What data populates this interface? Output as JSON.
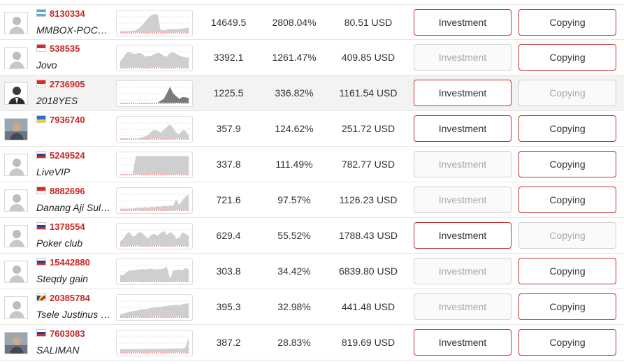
{
  "colors": {
    "account_red": "#c82828",
    "button_border_active": "#c13030",
    "button_border_disabled": "#cfcfcf",
    "sparkline_fill": "#cfcfcf",
    "sparkline_baseline": "#e05050"
  },
  "rows": [
    {
      "flag": "guatemala",
      "account": "8130334",
      "nickname": "MMBOX-POCKETS",
      "points": "14649.5",
      "gain": "2808.04%",
      "equity": "80.51 USD",
      "invest_label": "Investment",
      "copy_label": "Copying",
      "invest_enabled": true,
      "copy_enabled": true,
      "avatar": "default-avatar",
      "highlighted": false,
      "trend": [
        0.05,
        0.05,
        0.05,
        0.06,
        0.07,
        0.1,
        0.2,
        0.35,
        0.55,
        0.75,
        0.9,
        0.95,
        0.95,
        0.1,
        0.1,
        0.12,
        0.15,
        0.15,
        0.15,
        0.16,
        0.18,
        0.22,
        0.25
      ]
    },
    {
      "flag": "indonesia",
      "account": "538535",
      "nickname": "Jovo",
      "points": "3392.1",
      "gain": "1261.47%",
      "equity": "409.85 USD",
      "invest_label": "Investment",
      "copy_label": "Copying",
      "invest_enabled": false,
      "copy_enabled": true,
      "avatar": "default-avatar",
      "highlighted": false,
      "trend": [
        0.3,
        0.5,
        0.75,
        0.8,
        0.72,
        0.7,
        0.75,
        0.72,
        0.55,
        0.6,
        0.58,
        0.7,
        0.75,
        0.72,
        0.6,
        0.55,
        0.75,
        0.78,
        0.7,
        0.6,
        0.55,
        0.52,
        0.5
      ]
    },
    {
      "flag": "indonesia",
      "account": "2736905",
      "nickname": "2018YES",
      "points": "1225.5",
      "gain": "336.82%",
      "equity": "1161.54 USD",
      "invest_label": "Investment",
      "copy_label": "Copying",
      "invest_enabled": true,
      "copy_enabled": false,
      "avatar": "suit-avatar",
      "highlighted": true,
      "trend": [
        0,
        0,
        0,
        0,
        0,
        0,
        0,
        0,
        0,
        0,
        0,
        0,
        0,
        0.1,
        0.2,
        0.5,
        0.85,
        0.5,
        0.35,
        0.2,
        0.3,
        0.28,
        0.25
      ]
    },
    {
      "flag": "ukraine",
      "account": "7936740",
      "nickname": "",
      "points": "357.9",
      "gain": "124.62%",
      "equity": "251.72 USD",
      "invest_label": "Investment",
      "copy_label": "Copying",
      "invest_enabled": true,
      "copy_enabled": true,
      "avatar": "photo-avatar",
      "highlighted": false,
      "trend": [
        0,
        0,
        0,
        0,
        0,
        0,
        0.02,
        0.05,
        0.1,
        0.2,
        0.35,
        0.45,
        0.4,
        0.3,
        0.45,
        0.6,
        0.75,
        0.55,
        0.3,
        0.2,
        0.45,
        0.4,
        0.15
      ]
    },
    {
      "flag": "russia",
      "account": "5249524",
      "nickname": "LiveVIP",
      "points": "337.8",
      "gain": "111.49%",
      "equity": "782.77 USD",
      "invest_label": "Investment",
      "copy_label": "Copying",
      "invest_enabled": false,
      "copy_enabled": true,
      "avatar": "default-avatar",
      "highlighted": false,
      "trend": [
        0,
        0,
        0,
        0,
        0,
        0.95,
        0.95,
        0.95,
        0.95,
        0.95,
        0.95,
        0.95,
        0.95,
        0.95,
        0.95,
        0.95,
        0.95,
        0.95,
        0.95,
        0.95,
        0.95,
        0.95,
        0.95
      ]
    },
    {
      "flag": "indonesia",
      "account": "8882696",
      "nickname": "Danang Aji Sulistyo",
      "points": "721.6",
      "gain": "97.57%",
      "equity": "1126.23 USD",
      "invest_label": "Investment",
      "copy_label": "Copying",
      "invest_enabled": false,
      "copy_enabled": true,
      "avatar": "default-avatar",
      "highlighted": false,
      "trend": [
        0.05,
        0.05,
        0.05,
        0.06,
        0.05,
        0.08,
        0.1,
        0.08,
        0.12,
        0.1,
        0.15,
        0.12,
        0.18,
        0.15,
        0.2,
        0.18,
        0.22,
        0.2,
        0.55,
        0.25,
        0.5,
        0.7,
        0.8
      ]
    },
    {
      "flag": "russia",
      "account": "1378554",
      "nickname": "Poker club",
      "points": "629.4",
      "gain": "55.52%",
      "equity": "1788.43 USD",
      "invest_label": "Investment",
      "copy_label": "Copying",
      "invest_enabled": true,
      "copy_enabled": false,
      "avatar": "default-avatar",
      "highlighted": false,
      "trend": [
        0.2,
        0.35,
        0.6,
        0.7,
        0.45,
        0.5,
        0.7,
        0.65,
        0.5,
        0.35,
        0.55,
        0.6,
        0.5,
        0.65,
        0.75,
        0.55,
        0.7,
        0.6,
        0.35,
        0.4,
        0.7,
        0.6,
        0.5
      ]
    },
    {
      "flag": "slovakia",
      "account": "15442880",
      "nickname": "Steqdy gain",
      "points": "303.8",
      "gain": "34.42%",
      "equity": "6839.80 USD",
      "invest_label": "Investment",
      "copy_label": "Copying",
      "invest_enabled": false,
      "copy_enabled": true,
      "avatar": "default-avatar",
      "highlighted": false,
      "trend": [
        0.3,
        0.3,
        0.45,
        0.55,
        0.55,
        0.58,
        0.6,
        0.62,
        0.6,
        0.63,
        0.65,
        0.6,
        0.62,
        0.62,
        0.65,
        0.75,
        0.1,
        0.55,
        0.58,
        0.6,
        0.55,
        0.7,
        0.6
      ]
    },
    {
      "flag": "seychelles",
      "account": "20385784",
      "nickname": "Tsele Justinus Nel",
      "points": "395.3",
      "gain": "32.98%",
      "equity": "441.48 USD",
      "invest_label": "Investment",
      "copy_label": "Copying",
      "invest_enabled": false,
      "copy_enabled": true,
      "avatar": "default-avatar",
      "highlighted": false,
      "trend": [
        0.1,
        0.15,
        0.2,
        0.25,
        0.28,
        0.3,
        0.35,
        0.38,
        0.4,
        0.42,
        0.45,
        0.48,
        0.5,
        0.5,
        0.55,
        0.55,
        0.58,
        0.6,
        0.62,
        0.6,
        0.65,
        0.68,
        0.7
      ]
    },
    {
      "flag": "russia",
      "account": "7603083",
      "nickname": "SALIMAN",
      "points": "387.2",
      "gain": "28.83%",
      "equity": "819.69 USD",
      "invest_label": "Investment",
      "copy_label": "Copying",
      "invest_enabled": true,
      "copy_enabled": true,
      "avatar": "photo-avatar",
      "highlighted": false,
      "trend": [
        0.15,
        0.15,
        0.15,
        0.16,
        0.16,
        0.15,
        0.16,
        0.17,
        0.16,
        0.17,
        0.18,
        0.17,
        0.18,
        0.17,
        0.18,
        0.19,
        0.18,
        0.19,
        0.2,
        0.19,
        0.2,
        0.25,
        0.8
      ]
    }
  ]
}
